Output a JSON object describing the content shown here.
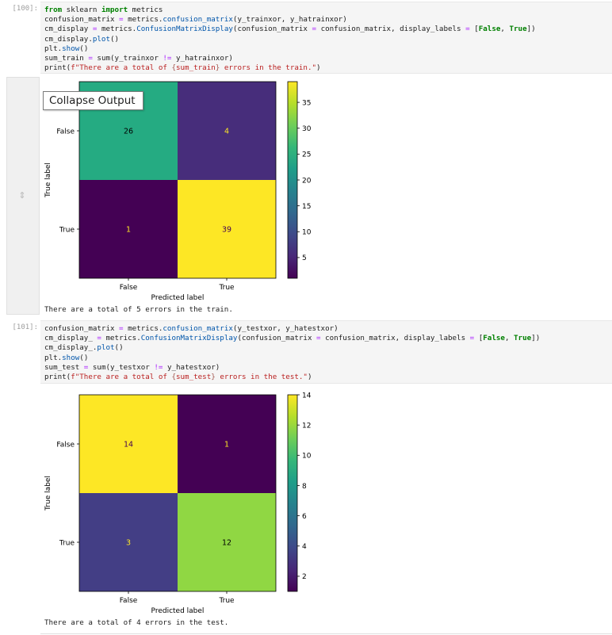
{
  "cells": [
    {
      "prompt": "[100]:",
      "code_lines": [
        "from sklearn import metrics",
        "confusion_matrix = metrics.confusion_matrix(y_trainxor, y_hatrainxor)",
        "cm_display = metrics.ConfusionMatrixDisplay(confusion_matrix = confusion_matrix, display_labels = [False, True])",
        "cm_display.plot()",
        "plt.show()",
        "sum_train = sum(y_trainxor != y_hatrainxor)",
        "print(f\"There are a total of {sum_train} errors in the train.\")"
      ],
      "output_text": "There are a total of 5 errors in the train.",
      "tooltip": "Collapse Output"
    },
    {
      "prompt": "[101]:",
      "code_lines": [
        "confusion_matrix = metrics.confusion_matrix(y_testxor, y_hatestxor)",
        "cm_display_ = metrics.ConfusionMatrixDisplay(confusion_matrix = confusion_matrix, display_labels = [False, True])",
        "cm_display_.plot()",
        "plt.show()",
        "sum_test = sum(y_testxor != y_hatestxor)",
        "print(f\"There are a total of {sum_test} errors in the test.\")"
      ],
      "output_text": "There are a total of 4 errors in the test."
    }
  ],
  "chart_data": [
    {
      "type": "heatmap",
      "title": "",
      "xlabel": "Predicted label",
      "ylabel": "True label",
      "x_categories": [
        "False",
        "True"
      ],
      "y_categories": [
        "False",
        "True"
      ],
      "values": [
        [
          26,
          4
        ],
        [
          1,
          39
        ]
      ],
      "colormap": "viridis",
      "colorbar_range": [
        1,
        39
      ],
      "colorbar_ticks": [
        "5",
        "10",
        "15",
        "20",
        "25",
        "30",
        "35"
      ],
      "cell_colors": [
        [
          "#25ab82",
          "#472d7b"
        ],
        [
          "#440154",
          "#fde725"
        ]
      ],
      "text_colors": [
        [
          "#000000",
          "#fde725"
        ],
        [
          "#fde725",
          "#440154"
        ]
      ]
    },
    {
      "type": "heatmap",
      "title": "",
      "xlabel": "Predicted label",
      "ylabel": "True label",
      "x_categories": [
        "False",
        "True"
      ],
      "y_categories": [
        "False",
        "True"
      ],
      "values": [
        [
          14,
          1
        ],
        [
          3,
          12
        ]
      ],
      "colormap": "viridis",
      "colorbar_range": [
        1,
        14
      ],
      "colorbar_ticks": [
        "2",
        "4",
        "6",
        "8",
        "10",
        "12",
        "14"
      ],
      "cell_colors": [
        [
          "#fde725",
          "#440154"
        ],
        [
          "#433e85",
          "#90d743"
        ]
      ],
      "text_colors": [
        [
          "#440154",
          "#fde725"
        ],
        [
          "#fde725",
          "#000000"
        ]
      ]
    }
  ]
}
